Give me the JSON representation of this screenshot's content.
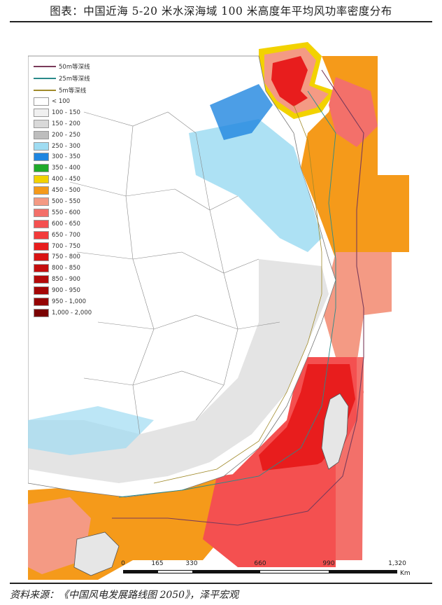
{
  "title": "图表：中国近海 5-20 米水深海域 100 米高度年平均风功率密度分布",
  "source": "资料来源：《中国风电发展路线图 2050》，泽平宏观",
  "legend": {
    "lines": [
      {
        "label": "50m等深线",
        "color": "#7a3b5a"
      },
      {
        "label": "25m等深线",
        "color": "#2a8a8a"
      },
      {
        "label": "5m等深线",
        "color": "#a08a2a"
      }
    ],
    "classes": [
      {
        "label": "< 100",
        "color": "#ffffff"
      },
      {
        "label": "100 - 150",
        "color": "#f0f0f0"
      },
      {
        "label": "150 - 200",
        "color": "#d9d9d9"
      },
      {
        "label": "200 - 250",
        "color": "#bdbdbd"
      },
      {
        "label": "250 - 300",
        "color": "#9fdcf2"
      },
      {
        "label": "300 - 350",
        "color": "#1f86e0"
      },
      {
        "label": "350 - 400",
        "color": "#1faa2a"
      },
      {
        "label": "400 - 450",
        "color": "#f2d200"
      },
      {
        "label": "450 - 500",
        "color": "#f59a1a"
      },
      {
        "label": "500 - 550",
        "color": "#f49a84"
      },
      {
        "label": "550 - 600",
        "color": "#f3706a"
      },
      {
        "label": "600 - 650",
        "color": "#f45050"
      },
      {
        "label": "650 - 700",
        "color": "#f23a3a"
      },
      {
        "label": "700 - 750",
        "color": "#e81d1d"
      },
      {
        "label": "750 - 800",
        "color": "#d81414"
      },
      {
        "label": "800 - 850",
        "color": "#c40e0e"
      },
      {
        "label": "850 - 900",
        "color": "#b40a0a"
      },
      {
        "label": "900 - 950",
        "color": "#a40606"
      },
      {
        "label": "950 - 1,000",
        "color": "#940404"
      },
      {
        "label": "1,000 - 2,000",
        "color": "#7a0202"
      }
    ]
  },
  "scale": {
    "ticks": [
      "0",
      "165",
      "330",
      "660",
      "990",
      "1,320"
    ],
    "tick_values": [
      0,
      165,
      330,
      660,
      990,
      1320
    ],
    "unit": "Km"
  }
}
